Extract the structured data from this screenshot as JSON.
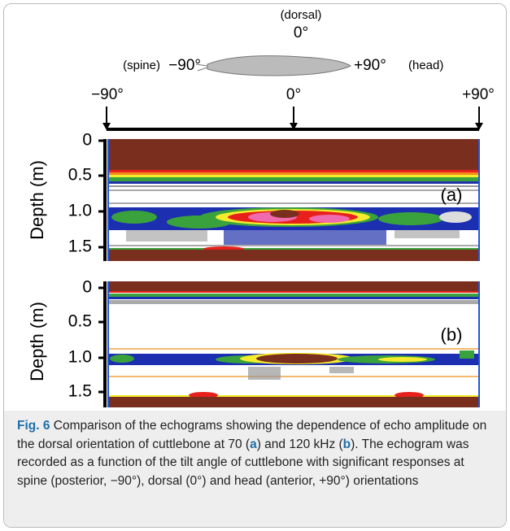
{
  "orientation": {
    "top_label": "(dorsal)",
    "top_angle": "0°",
    "left_label": "(spine)",
    "left_angle": "−90°",
    "right_angle": "+90°",
    "right_label": "(head)"
  },
  "angle_axis": [
    "−90°",
    "0°",
    "+90°"
  ],
  "panels": [
    {
      "label": "(a)",
      "y_axis_title": "Depth (m)",
      "yticks": [
        "0",
        "0.5",
        "1.0",
        "1.5"
      ]
    },
    {
      "label": "(b)",
      "y_axis_title": "Depth (m)",
      "yticks": [
        "0",
        "0.5",
        "1.0",
        "1.5"
      ]
    }
  ],
  "caption": [
    {
      "text": "Fig. 6",
      "style": "fig"
    },
    {
      "text": " Comparison of the echograms showing the dependence of echo amplitude on the dorsal orientation of cuttlebone at 70 (",
      "style": "plain"
    },
    {
      "text": "a",
      "style": "bold"
    },
    {
      "text": ") and 120 kHz (",
      "style": "plain"
    },
    {
      "text": "b",
      "style": "bold"
    },
    {
      "text": "). The echogram was recorded as a function of the tilt angle of cuttlebone with significant responses at spine (posterior, −90°), dorsal (0°) and head (anterior, +90°) orientations",
      "style": "plain"
    }
  ]
}
